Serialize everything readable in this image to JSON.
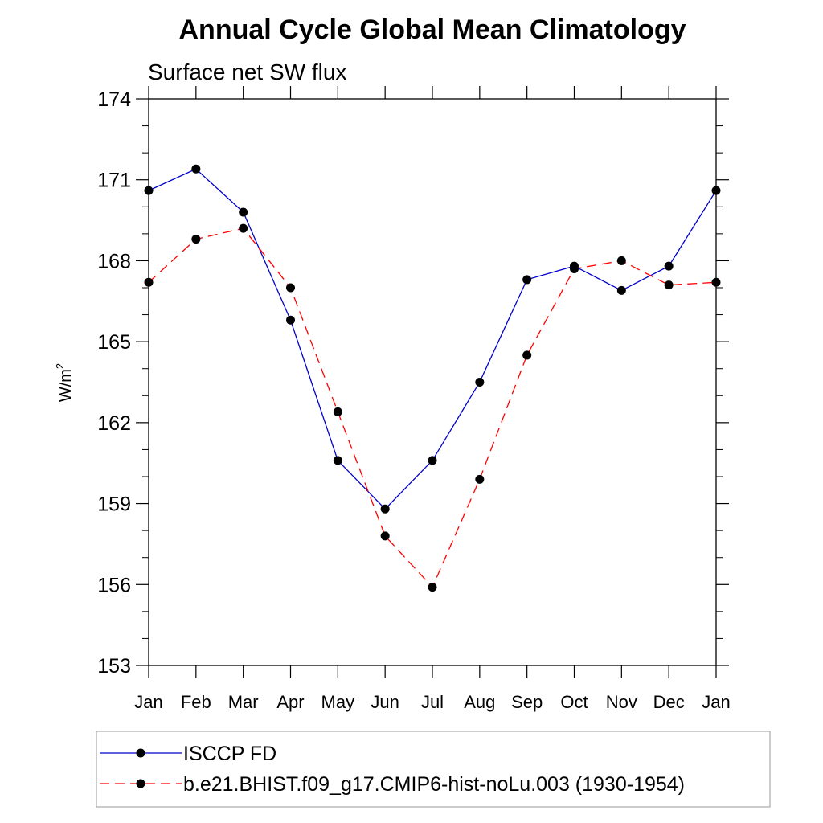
{
  "chart_data": {
    "type": "line",
    "title": "Annual Cycle Global Mean Climatology",
    "subtitle": "Surface net SW flux",
    "ylabel": "W/m",
    "ylabel_superscript": "2",
    "ylim": [
      153,
      174
    ],
    "yticks": [
      "153",
      "156",
      "159",
      "162",
      "165",
      "168",
      "171",
      "174"
    ],
    "categories": [
      "Jan",
      "Feb",
      "Mar",
      "Apr",
      "May",
      "Jun",
      "Jul",
      "Aug",
      "Sep",
      "Oct",
      "Nov",
      "Dec",
      "Jan"
    ],
    "grid": false,
    "legend_position": "bottom",
    "series": [
      {
        "name": "ISCCP FD",
        "color": "#0000cc",
        "line_style": "solid",
        "values": [
          170.6,
          171.4,
          169.8,
          165.8,
          160.6,
          158.8,
          160.6,
          163.5,
          167.3,
          167.8,
          166.9,
          167.8,
          170.6
        ]
      },
      {
        "name": "b.e21.BHIST.f09_g17.CMIP6-hist-noLu.003 (1930-1954)",
        "color": "#ff0000",
        "line_style": "dashed",
        "values": [
          167.2,
          168.8,
          169.2,
          167.0,
          162.4,
          157.8,
          155.9,
          159.9,
          164.5,
          167.7,
          168.0,
          167.1,
          167.2
        ]
      }
    ]
  }
}
